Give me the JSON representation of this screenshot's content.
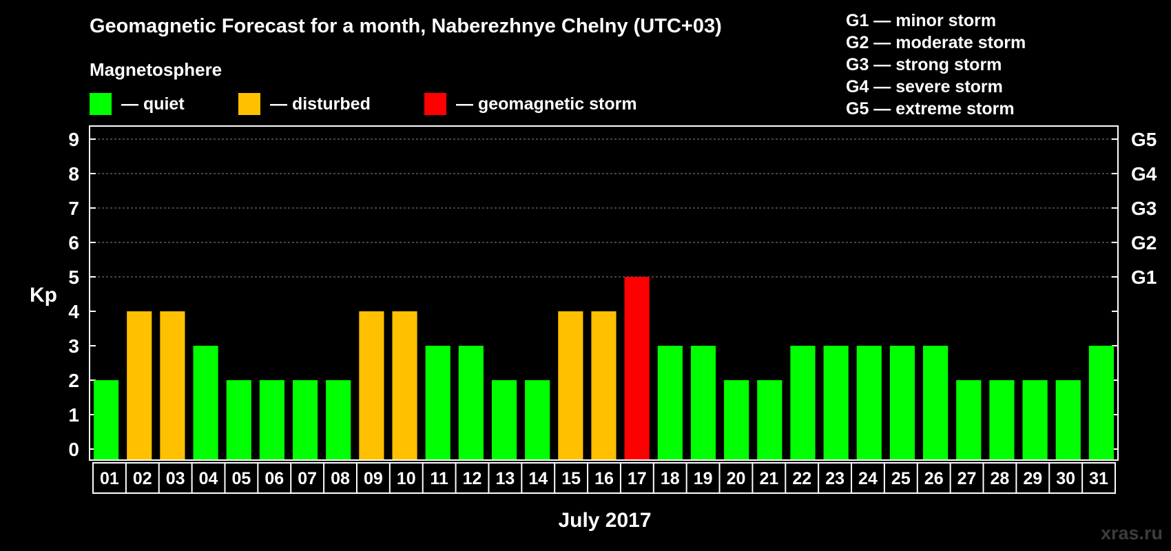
{
  "title": "Geomagnetic Forecast for a month, Naberezhnye Chelny (UTC+03)",
  "subtitle": "Magnetosphere",
  "legend": [
    {
      "label": "— quiet",
      "color": "#00ff00"
    },
    {
      "label": "— disturbed",
      "color": "#ffc000"
    },
    {
      "label": "— geomagnetic storm",
      "color": "#ff0000"
    }
  ],
  "g_scale_legend": [
    "G1 — minor storm",
    "G2 — moderate storm",
    "G3 — strong storm",
    "G4 — severe storm",
    "G5 — extreme storm"
  ],
  "watermark": "xras.ru",
  "chart_data": {
    "type": "bar",
    "title": "Geomagnetic Forecast for a month, Naberezhnye Chelny (UTC+03)",
    "xlabel": "July 2017",
    "ylabel": "Kp",
    "ylim": [
      0,
      9
    ],
    "yticks": [
      "0",
      "1",
      "2",
      "3",
      "4",
      "5",
      "6",
      "7",
      "8",
      "9"
    ],
    "right_ticks": [
      {
        "value": 5,
        "label": "G1"
      },
      {
        "value": 6,
        "label": "G2"
      },
      {
        "value": 7,
        "label": "G3"
      },
      {
        "value": 8,
        "label": "G4"
      },
      {
        "value": 9,
        "label": "G5"
      }
    ],
    "categories": [
      "01",
      "02",
      "03",
      "04",
      "05",
      "06",
      "07",
      "08",
      "09",
      "10",
      "11",
      "12",
      "13",
      "14",
      "15",
      "16",
      "17",
      "18",
      "19",
      "20",
      "21",
      "22",
      "23",
      "24",
      "25",
      "26",
      "27",
      "28",
      "29",
      "30",
      "31"
    ],
    "values": [
      2,
      4,
      4,
      3,
      2,
      2,
      2,
      2,
      4,
      4,
      3,
      3,
      2,
      2,
      4,
      4,
      5,
      3,
      3,
      2,
      2,
      3,
      3,
      3,
      3,
      3,
      2,
      2,
      2,
      2,
      3
    ],
    "colors": {
      "quiet": "#00ff00",
      "disturbed": "#ffc000",
      "storm": "#ff0000"
    },
    "grid": true
  }
}
